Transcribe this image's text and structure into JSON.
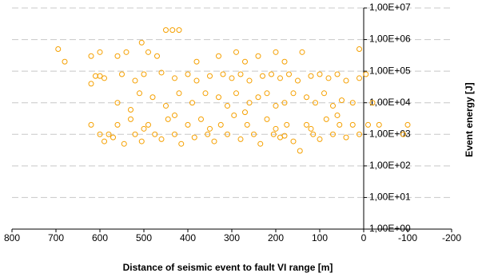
{
  "chart_data": {
    "type": "scatter",
    "x_label": "Distance of seismic event to fault VI range [m]",
    "y_label": "Event energy [J]",
    "color": "#f5a000",
    "log_y": true,
    "grid": true,
    "xlim": [
      800,
      -200
    ],
    "xticks": [
      {
        "value": 800,
        "label": "800"
      },
      700,
      600,
      500,
      400,
      300,
      200,
      100,
      0,
      -100,
      -200
    ],
    "ylim": [
      1,
      10000000
    ],
    "yticks": [
      {
        "value": 1,
        "label": "1,00E+00"
      },
      {
        "value": 10,
        "label": "1,00E+01"
      },
      {
        "value": 100,
        "label": "1,00E+02"
      },
      {
        "value": 1000,
        "label": "1,00E+03"
      },
      {
        "value": 10000,
        "label": "1,00E+04"
      },
      {
        "value": 100000,
        "label": "1,00E+05"
      },
      {
        "value": 1000000,
        "label": "1,00E+06"
      },
      {
        "value": 10000000,
        "label": "1,00E+07"
      }
    ],
    "x": [
      695,
      680,
      620,
      600,
      450,
      435,
      420,
      505,
      560,
      540,
      490,
      470,
      380,
      330,
      290,
      270,
      240,
      200,
      180,
      140,
      10,
      610,
      590,
      600,
      620,
      550,
      520,
      500,
      460,
      430,
      400,
      380,
      350,
      320,
      300,
      280,
      260,
      230,
      210,
      190,
      170,
      150,
      120,
      100,
      80,
      60,
      40,
      10,
      -5,
      560,
      530,
      510,
      480,
      450,
      420,
      390,
      360,
      330,
      310,
      290,
      260,
      240,
      220,
      200,
      180,
      160,
      130,
      110,
      90,
      70,
      50,
      25,
      -20,
      620,
      600,
      590,
      570,
      560,
      545,
      530,
      520,
      505,
      490,
      475,
      460,
      445,
      430,
      415,
      400,
      385,
      370,
      355,
      340,
      325,
      310,
      295,
      280,
      265,
      250,
      235,
      220,
      205,
      190,
      175,
      160,
      145,
      130,
      115,
      100,
      85,
      70,
      55,
      40,
      25,
      10,
      -10,
      -35,
      -100,
      -90,
      500,
      350,
      200,
      120,
      60,
      270,
      430,
      580,
      180
    ],
    "values": [
      500000,
      200000,
      300000,
      400000,
      2000000,
      2000000,
      2000000,
      800000,
      300000,
      400000,
      400000,
      300000,
      200000,
      300000,
      400000,
      200000,
      300000,
      400000,
      200000,
      400000,
      500000,
      70000,
      60000,
      70000,
      40000,
      80000,
      50000,
      80000,
      90000,
      60000,
      80000,
      50000,
      70000,
      80000,
      60000,
      80000,
      50000,
      70000,
      80000,
      60000,
      80000,
      50000,
      70000,
      80000,
      60000,
      80000,
      50000,
      60000,
      80000,
      10000,
      6000,
      20000,
      15000,
      8000,
      20000,
      10000,
      20000,
      15000,
      8000,
      20000,
      10000,
      15000,
      20000,
      8000,
      10000,
      20000,
      15000,
      10000,
      20000,
      8000,
      12000,
      10000,
      10000,
      2000,
      1000,
      600,
      800,
      2000,
      500,
      3000,
      1000,
      600,
      2000,
      1000,
      700,
      3000,
      1000,
      500,
      2000,
      800,
      3000,
      1000,
      600,
      2000,
      1000,
      4000,
      700,
      2000,
      1000,
      500,
      3000,
      1000,
      800,
      2000,
      600,
      300,
      2000,
      1000,
      700,
      3000,
      1000,
      2000,
      800,
      2000,
      1000,
      2000,
      2000,
      2000,
      1000,
      1500,
      1500,
      1500,
      1500,
      4000,
      5000,
      4000,
      1000,
      900
    ]
  }
}
